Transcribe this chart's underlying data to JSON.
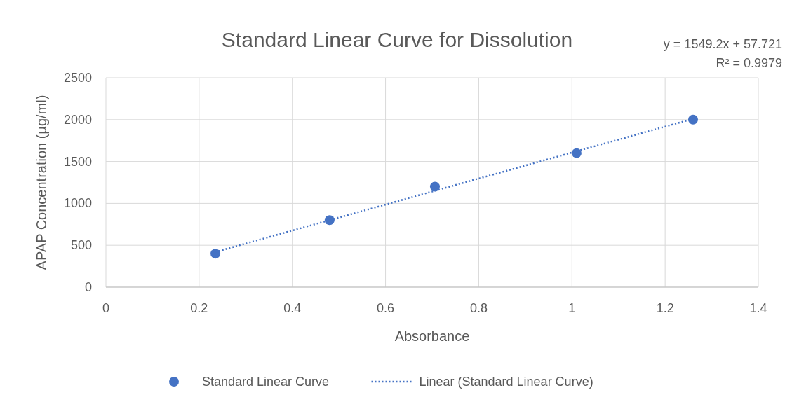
{
  "chart_data": {
    "type": "scatter",
    "title": "Standard Linear Curve for Dissolution",
    "xlabel": "Absorbance",
    "ylabel": "APAP Concentration (µg/ml)",
    "annotations": [
      "y = 1549.2x + 57.721",
      "R² = 0.9979"
    ],
    "xlim": [
      0,
      1.4
    ],
    "xticks": [
      0,
      0.2,
      0.4,
      0.6,
      0.8,
      1,
      1.2,
      1.4
    ],
    "ylim": [
      0,
      2500
    ],
    "yticks": [
      0,
      500,
      1000,
      1500,
      2000,
      2500
    ],
    "grid": true,
    "legend": "bottom",
    "series": [
      {
        "name": "Standard Linear Curve",
        "type": "scatter",
        "color": "#4472c4",
        "marker": "circle",
        "x": [
          0.235,
          0.48,
          0.706,
          1.01,
          1.26
        ],
        "values": [
          400,
          800,
          1200,
          1600,
          2000
        ]
      },
      {
        "name": "Linear (Standard Linear Curve)",
        "type": "line",
        "color": "#4472c4",
        "line_style": "dotted",
        "marker": "none",
        "x": [
          0.235,
          1.26
        ],
        "values": [
          420,
          2010
        ]
      }
    ]
  }
}
